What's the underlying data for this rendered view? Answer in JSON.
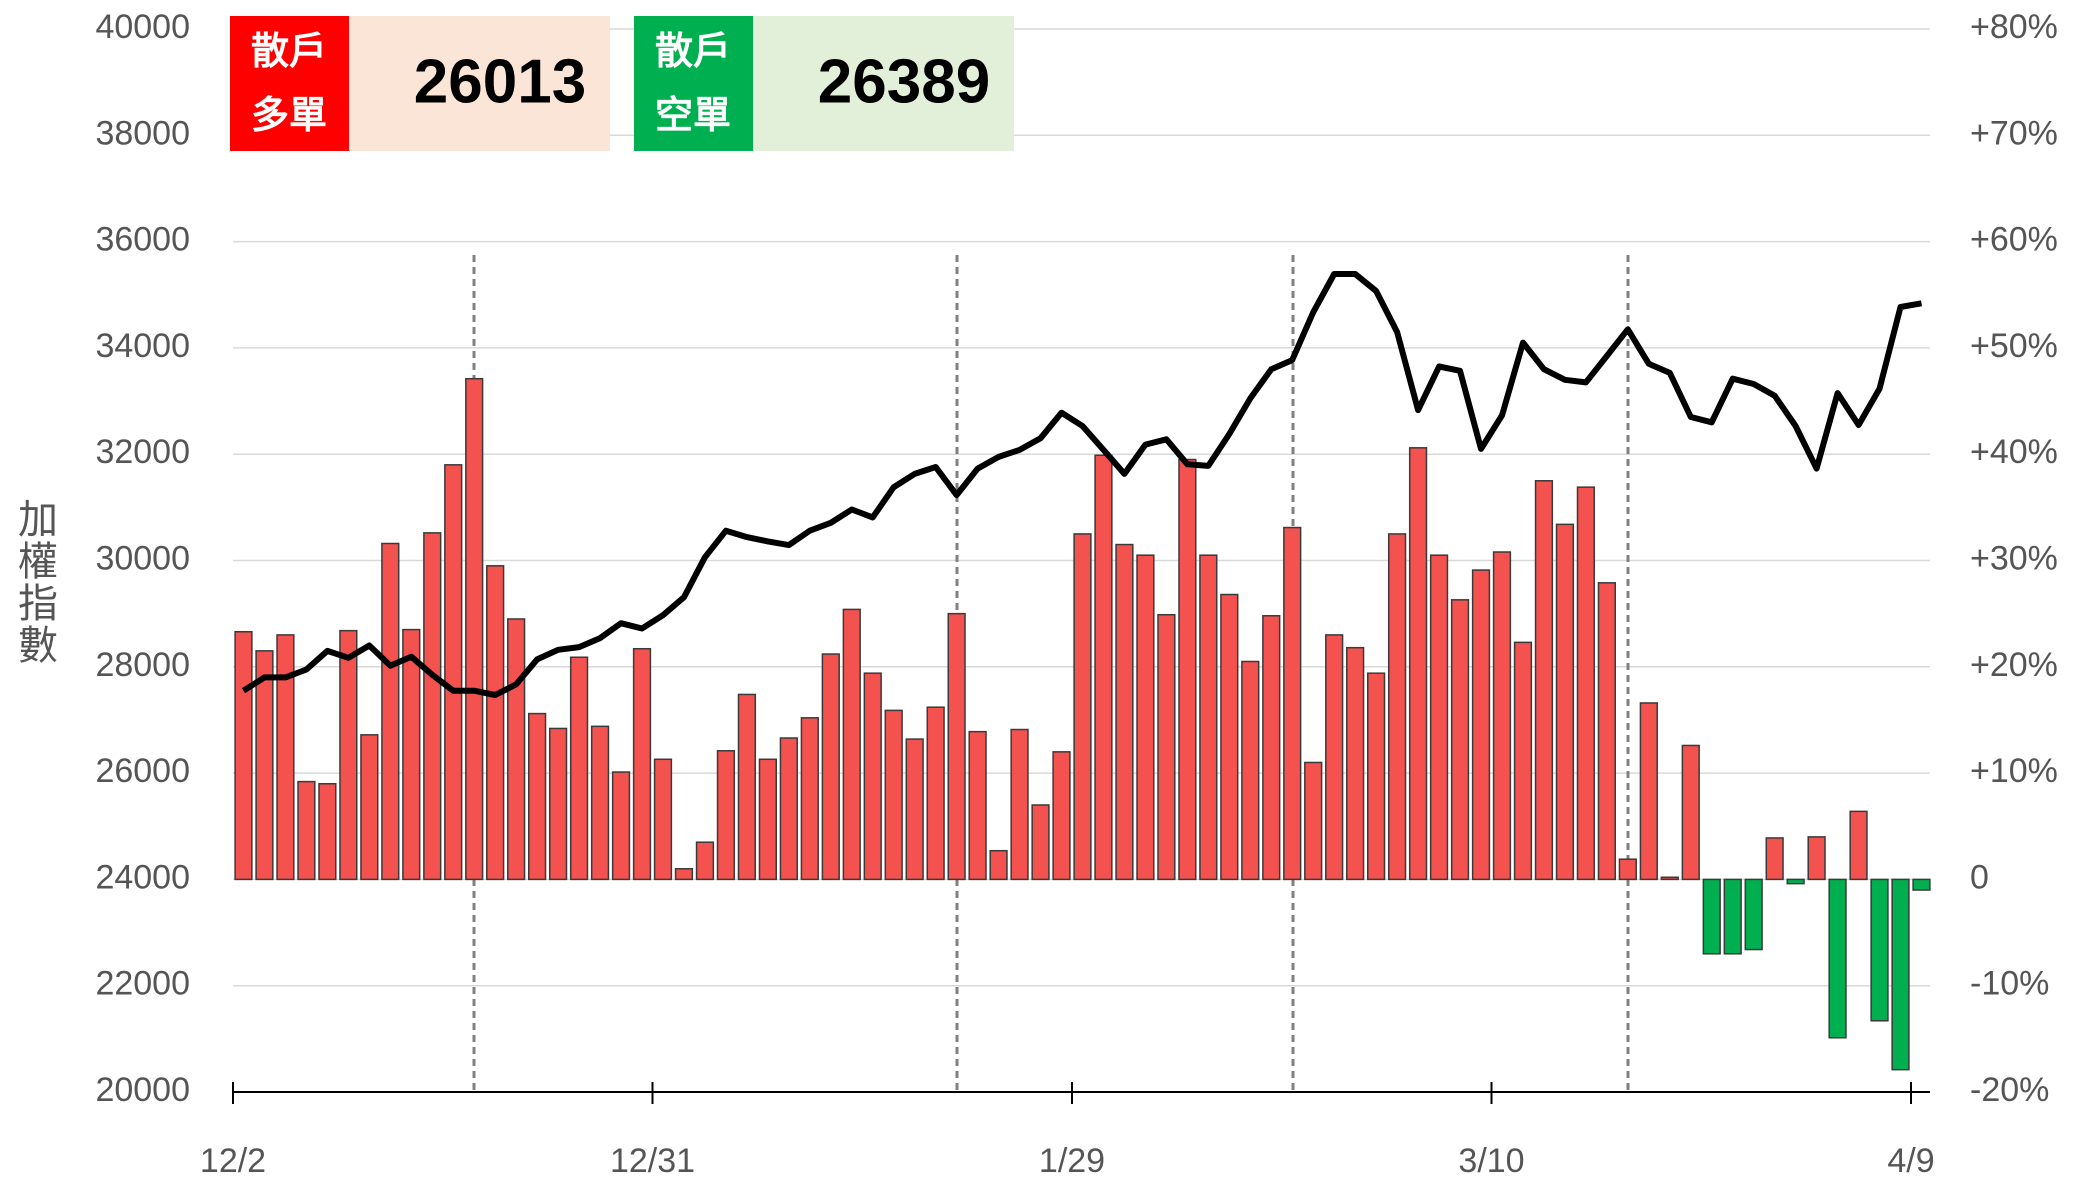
{
  "chart_data": {
    "type": "bar",
    "y_label": "加權指數",
    "header": [
      {
        "label_lines": [
          "散戶",
          "多單"
        ],
        "value": 26013,
        "label_color": "#ff0000",
        "value_bg": "#fbe5d6"
      },
      {
        "label_lines": [
          "散戶",
          "空單"
        ],
        "value": 26389,
        "label_color": "#00b050",
        "value_bg": "#e2f0d9"
      }
    ],
    "categories": [
      "12/2",
      null,
      null,
      null,
      null,
      null,
      null,
      null,
      null,
      null,
      null,
      null,
      null,
      null,
      null,
      null,
      null,
      null,
      null,
      null,
      "12/31",
      null,
      null,
      null,
      null,
      null,
      null,
      null,
      null,
      null,
      null,
      null,
      null,
      null,
      null,
      null,
      null,
      null,
      null,
      null,
      "1/29",
      null,
      null,
      null,
      null,
      null,
      null,
      null,
      null,
      null,
      null,
      null,
      null,
      null,
      null,
      null,
      null,
      null,
      null,
      null,
      "3/10",
      null,
      null,
      null,
      null,
      null,
      null,
      null,
      null,
      null,
      null,
      null,
      null,
      null,
      null,
      null,
      null,
      null,
      null,
      null,
      "4/9"
    ],
    "series": [
      {
        "type": "bar",
        "axis": "y2",
        "color": "#f4524f",
        "negative_color": "#00b050",
        "values": [
          23.3,
          21.5,
          23.0,
          9.2,
          9.0,
          23.4,
          13.6,
          31.6,
          23.5,
          32.6,
          39.0,
          47.1,
          29.5,
          24.5,
          15.6,
          14.2,
          20.9,
          14.4,
          10.1,
          21.7,
          11.3,
          1.0,
          3.5,
          12.1,
          17.4,
          11.3,
          13.3,
          15.2,
          21.2,
          25.4,
          19.4,
          15.9,
          13.2,
          16.2,
          25.0,
          13.9,
          2.7,
          14.1,
          7.0,
          12.0,
          32.5,
          39.9,
          31.5,
          30.5,
          24.9,
          39.5,
          30.5,
          26.8,
          20.5,
          24.8,
          33.1,
          11.0,
          23.0,
          21.8,
          19.4,
          32.5,
          40.6,
          30.5,
          26.3,
          29.1,
          30.8,
          22.3,
          37.5,
          33.4,
          36.9,
          27.9,
          1.9,
          16.6,
          0.2,
          12.6,
          -7.0,
          -7.0,
          -6.6,
          3.9,
          -0.4,
          4.0,
          -14.9,
          6.4,
          -13.3,
          -17.9,
          -1.0
        ]
      },
      {
        "type": "line",
        "color": "#000000",
        "values": [
          27550,
          27800,
          27800,
          27950,
          28300,
          28170,
          28400,
          28020,
          28190,
          27850,
          27550,
          27550,
          27470,
          27670,
          28140,
          28320,
          28370,
          28540,
          28820,
          28720,
          28970,
          29310,
          30060,
          30560,
          30440,
          30360,
          30290,
          30560,
          30710,
          30960,
          30810,
          31380,
          31630,
          31760,
          31230,
          31730,
          31950,
          32080,
          32300,
          32780,
          32530,
          32080,
          31630,
          32180,
          32280,
          31810,
          31780,
          32380,
          33050,
          33600,
          33770,
          34670,
          35390,
          35390,
          35070,
          34300,
          32830,
          33650,
          33570,
          32100,
          32730,
          34100,
          33600,
          33400,
          33350,
          33850,
          34350,
          33700,
          33530,
          32700,
          32600,
          33420,
          33320,
          33100,
          32530,
          31730,
          33150,
          32550,
          33230,
          34770,
          34840
        ]
      }
    ],
    "ylim": [
      20000,
      40000
    ],
    "yticks": [
      20000,
      22000,
      24000,
      26000,
      28000,
      30000,
      32000,
      34000,
      36000,
      38000,
      40000
    ],
    "y2lim": [
      -20,
      80
    ],
    "y2ticks": [
      {
        "value": -20,
        "label": "-20%"
      },
      {
        "value": -10,
        "label": "-10%"
      },
      0,
      {
        "value": 10,
        "label": "+10%"
      },
      {
        "value": 20,
        "label": "+20%"
      },
      {
        "value": 30,
        "label": "+30%"
      },
      {
        "value": 40,
        "label": "+40%"
      },
      {
        "value": 50,
        "label": "+50%"
      },
      {
        "value": 60,
        "label": "+60%"
      },
      {
        "value": 70,
        "label": "+70%"
      },
      {
        "value": 80,
        "label": "+80%"
      }
    ],
    "grid": true
  }
}
